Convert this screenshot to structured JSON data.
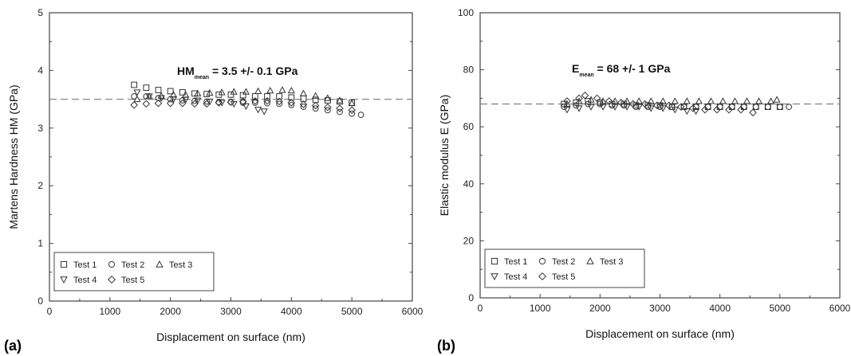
{
  "chart_data": [
    {
      "panel_label": "(a)",
      "type": "scatter",
      "xlabel": "Displacement on surface (nm)",
      "ylabel": "Martens Hardness HM (GPa)",
      "xlim": [
        0,
        6000
      ],
      "ylim": [
        0,
        5
      ],
      "xticks": [
        "0",
        "1000",
        "2000",
        "3000",
        "4000",
        "5000",
        "6000"
      ],
      "yticks": [
        "0",
        "1",
        "2",
        "3",
        "4",
        "5"
      ],
      "annotation": {
        "main": "HM",
        "subscript": "mean",
        "rest": " = 3.5 +/- 0.1 GPa"
      },
      "reference_line": 3.5,
      "legend_position": "bottom-left",
      "series": [
        {
          "name": "Test 1",
          "marker": "square",
          "points": [
            [
              1400,
              3.75
            ],
            [
              1600,
              3.7
            ],
            [
              1800,
              3.66
            ],
            [
              2000,
              3.64
            ],
            [
              2200,
              3.62
            ],
            [
              2400,
              3.6
            ],
            [
              2600,
              3.59
            ],
            [
              2800,
              3.58
            ],
            [
              3000,
              3.58
            ],
            [
              3200,
              3.57
            ],
            [
              3400,
              3.55
            ],
            [
              3600,
              3.55
            ],
            [
              3800,
              3.55
            ],
            [
              4000,
              3.53
            ],
            [
              4200,
              3.51
            ],
            [
              4400,
              3.49
            ],
            [
              4600,
              3.48
            ],
            [
              4800,
              3.46
            ],
            [
              5000,
              3.44
            ]
          ]
        },
        {
          "name": "Test 2",
          "marker": "circle",
          "points": [
            [
              1400,
              3.55
            ],
            [
              1600,
              3.55
            ],
            [
              1800,
              3.52
            ],
            [
              2000,
              3.5
            ],
            [
              2200,
              3.48
            ],
            [
              2400,
              3.47
            ],
            [
              2600,
              3.46
            ],
            [
              2800,
              3.45
            ],
            [
              3000,
              3.45
            ],
            [
              3200,
              3.44
            ],
            [
              3400,
              3.44
            ],
            [
              3600,
              3.43
            ],
            [
              3800,
              3.42
            ],
            [
              4000,
              3.4
            ],
            [
              4200,
              3.37
            ],
            [
              4400,
              3.34
            ],
            [
              4600,
              3.31
            ],
            [
              4800,
              3.28
            ],
            [
              5000,
              3.25
            ],
            [
              5150,
              3.23
            ]
          ]
        },
        {
          "name": "Test 3",
          "marker": "triangle-up",
          "points": [
            [
              1450,
              3.5
            ],
            [
              1650,
              3.55
            ],
            [
              1850,
              3.56
            ],
            [
              2050,
              3.58
            ],
            [
              2250,
              3.58
            ],
            [
              2450,
              3.6
            ],
            [
              2650,
              3.61
            ],
            [
              2850,
              3.62
            ],
            [
              3050,
              3.63
            ],
            [
              3250,
              3.63
            ],
            [
              3450,
              3.64
            ],
            [
              3650,
              3.65
            ],
            [
              3850,
              3.66
            ],
            [
              4000,
              3.65
            ],
            [
              4200,
              3.6
            ],
            [
              4400,
              3.56
            ],
            [
              4600,
              3.52
            ],
            [
              4800,
              3.48
            ],
            [
              5000,
              3.43
            ]
          ]
        },
        {
          "name": "Test 4",
          "marker": "triangle-down",
          "points": [
            [
              1450,
              3.62
            ],
            [
              1650,
              3.55
            ],
            [
              1850,
              3.52
            ],
            [
              2050,
              3.5
            ],
            [
              2250,
              3.49
            ],
            [
              2450,
              3.48
            ],
            [
              2650,
              3.46
            ],
            [
              2850,
              3.44
            ],
            [
              3050,
              3.42
            ],
            [
              3250,
              3.38
            ],
            [
              3450,
              3.32
            ],
            [
              3550,
              3.29
            ]
          ]
        },
        {
          "name": "Test 5",
          "marker": "diamond",
          "points": [
            [
              1400,
              3.4
            ],
            [
              1600,
              3.42
            ],
            [
              1800,
              3.43
            ],
            [
              2000,
              3.43
            ],
            [
              2200,
              3.43
            ],
            [
              2400,
              3.42
            ],
            [
              2600,
              3.42
            ],
            [
              2800,
              3.44
            ],
            [
              3000,
              3.45
            ],
            [
              3200,
              3.46
            ],
            [
              3400,
              3.47
            ],
            [
              3600,
              3.47
            ],
            [
              3800,
              3.46
            ],
            [
              4000,
              3.44
            ],
            [
              4200,
              3.41
            ],
            [
              4400,
              3.39
            ],
            [
              4600,
              3.36
            ],
            [
              4800,
              3.34
            ],
            [
              5000,
              3.31
            ]
          ]
        }
      ]
    },
    {
      "panel_label": "(b)",
      "type": "scatter",
      "xlabel": "Displacement on surface (nm)",
      "ylabel": "Elastic modulus E (GPa)",
      "xlim": [
        0,
        6000
      ],
      "ylim": [
        0,
        100
      ],
      "xticks": [
        "0",
        "1000",
        "2000",
        "3000",
        "4000",
        "5000",
        "6000"
      ],
      "yticks": [
        "0",
        "20",
        "40",
        "60",
        "80",
        "100"
      ],
      "annotation": {
        "main": "E",
        "subscript": "mean",
        "rest": " = 68 +/- 1 GPa"
      },
      "reference_line": 68,
      "legend_position": "bottom-left",
      "series": [
        {
          "name": "Test 1",
          "marker": "square",
          "points": [
            [
              1400,
              68
            ],
            [
              1600,
              68.5
            ],
            [
              1800,
              69
            ],
            [
              2000,
              68.5
            ],
            [
              2200,
              68
            ],
            [
              2400,
              68
            ],
            [
              2600,
              67.5
            ],
            [
              2800,
              67.5
            ],
            [
              3000,
              67.5
            ],
            [
              3200,
              67
            ],
            [
              3400,
              67
            ],
            [
              3600,
              67
            ],
            [
              3800,
              67
            ],
            [
              4000,
              67
            ],
            [
              4200,
              67
            ],
            [
              4400,
              67
            ],
            [
              4600,
              67
            ],
            [
              4800,
              67
            ],
            [
              5000,
              67
            ]
          ]
        },
        {
          "name": "Test 2",
          "marker": "circle",
          "points": [
            [
              1400,
              67
            ],
            [
              1600,
              67.5
            ],
            [
              1800,
              68
            ],
            [
              2000,
              68
            ],
            [
              2200,
              67.5
            ],
            [
              2400,
              67.5
            ],
            [
              2600,
              67
            ],
            [
              2800,
              67
            ],
            [
              3000,
              67
            ],
            [
              3200,
              67
            ],
            [
              3400,
              67
            ],
            [
              3600,
              67
            ],
            [
              3800,
              67
            ],
            [
              4000,
              67
            ],
            [
              4200,
              67
            ],
            [
              4400,
              67
            ],
            [
              4600,
              67
            ],
            [
              4800,
              67
            ],
            [
              5000,
              67
            ],
            [
              5150,
              67
            ]
          ]
        },
        {
          "name": "Test 3",
          "marker": "triangle-up",
          "points": [
            [
              1450,
              68
            ],
            [
              1650,
              69
            ],
            [
              1850,
              69.5
            ],
            [
              2050,
              69
            ],
            [
              2250,
              69
            ],
            [
              2450,
              69
            ],
            [
              2650,
              69
            ],
            [
              2850,
              69
            ],
            [
              3050,
              69
            ],
            [
              3250,
              69
            ],
            [
              3450,
              69
            ],
            [
              3650,
              69
            ],
            [
              3850,
              69
            ],
            [
              4050,
              69
            ],
            [
              4250,
              69
            ],
            [
              4450,
              69
            ],
            [
              4650,
              69
            ],
            [
              4850,
              69
            ],
            [
              4950,
              69.5
            ]
          ]
        },
        {
          "name": "Test 4",
          "marker": "triangle-down",
          "points": [
            [
              1450,
              66
            ],
            [
              1650,
              66.5
            ],
            [
              1850,
              67
            ],
            [
              2050,
              67
            ],
            [
              2250,
              67
            ],
            [
              2450,
              67
            ],
            [
              2650,
              67
            ],
            [
              2850,
              66.5
            ],
            [
              3050,
              66.5
            ],
            [
              3250,
              66
            ],
            [
              3450,
              65.5
            ],
            [
              3600,
              65.5
            ]
          ]
        },
        {
          "name": "Test 5",
          "marker": "diamond",
          "points": [
            [
              1450,
              69
            ],
            [
              1650,
              70
            ],
            [
              1750,
              71
            ],
            [
              1950,
              70
            ],
            [
              2150,
              69
            ],
            [
              2350,
              68.5
            ],
            [
              2550,
              68
            ],
            [
              2750,
              68
            ],
            [
              2950,
              67.5
            ],
            [
              3150,
              67.5
            ],
            [
              3350,
              67
            ],
            [
              3550,
              66.5
            ],
            [
              3750,
              66
            ],
            [
              3950,
              66
            ],
            [
              4150,
              66
            ],
            [
              4350,
              66
            ],
            [
              4550,
              65
            ]
          ]
        }
      ]
    }
  ]
}
